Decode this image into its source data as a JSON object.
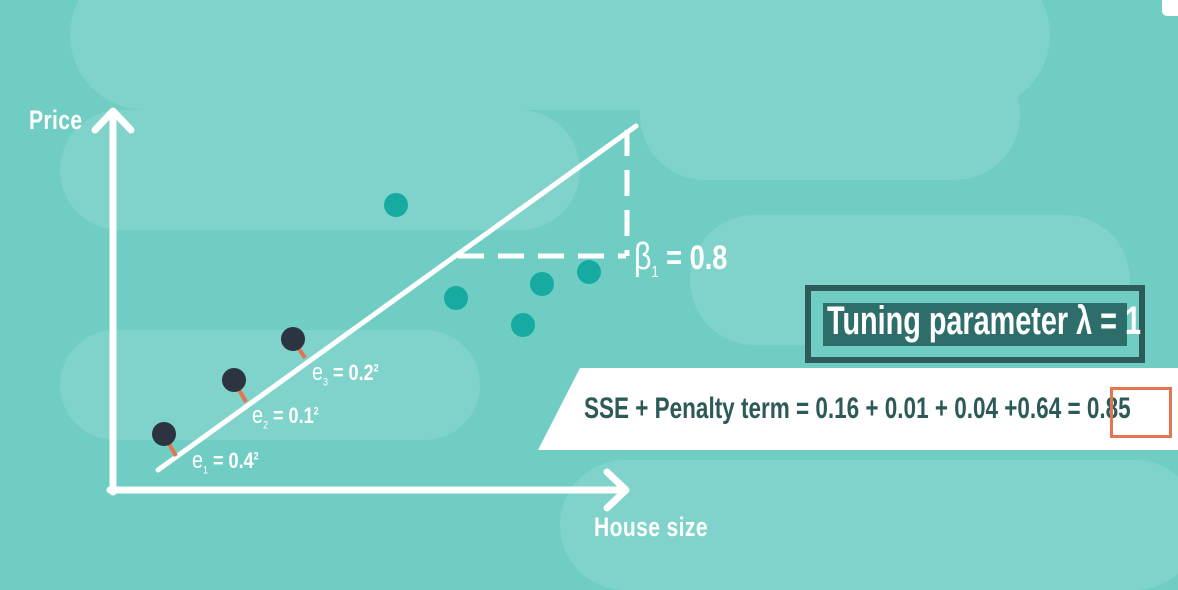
{
  "axes": {
    "y_label": "Price",
    "x_label": "House size"
  },
  "errors": [
    {
      "symbol": "e",
      "index": "1",
      "value": "= 0.4",
      "power": "2"
    },
    {
      "symbol": "e",
      "index": "2",
      "value": "= 0.1",
      "power": "2"
    },
    {
      "symbol": "e",
      "index": "3",
      "value": "= 0.2",
      "power": "2"
    }
  ],
  "slope": {
    "symbol": "β",
    "index": "1",
    "value": "= 0.8"
  },
  "tuning": {
    "label": "Tuning parameter λ = 1"
  },
  "equation": {
    "text": "SSE + Penalty term = 0.16 + 0.01 + 0.04 +0.64  = 0.85"
  },
  "colors": {
    "background": "#6fcdc3",
    "train_point": "#2b3440",
    "test_point": "#17aaa0",
    "residual": "#e1764f",
    "box_border": "#2c5b59",
    "box_fill": "#2e6e6a",
    "equation_text": "#2d5a57"
  }
}
